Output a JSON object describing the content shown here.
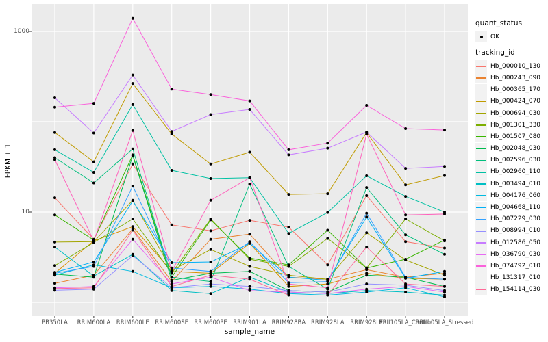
{
  "chart_data": {
    "type": "line",
    "title": "",
    "xlabel": "sample_name",
    "ylabel": "FPKM + 1",
    "y_scale": "log10",
    "ylim": [
      0.7,
      2000
    ],
    "y_ticks": [
      1000,
      10
    ],
    "y_tick_labels": [
      "1000",
      "10"
    ],
    "gridlines_y": [
      1,
      10,
      100,
      1000
    ],
    "grid": true,
    "legend_position": "right",
    "point_color": "#000000",
    "categories": [
      "PB350LA",
      "RRIM600LA",
      "RRIM600LE",
      "RRIM600SE",
      "RRIM600PE",
      "RRIM901LA",
      "RRIM928BA",
      "RRIM928LA",
      "RRIM928LE",
      "RRII105LA_Control",
      "RRII105LA_Stressed"
    ],
    "series": [
      {
        "name": "Hb_000010_130",
        "color": "#F8766D",
        "values": [
          14.4,
          5.0,
          34,
          7.2,
          6.2,
          8.1,
          6.8,
          2.6,
          15.2,
          4.7,
          4.0
        ]
      },
      {
        "name": "Hb_000243_090",
        "color": "#EA8331",
        "values": [
          1.62,
          2.0,
          6.5,
          1.7,
          5.0,
          5.7,
          1.9,
          1.8,
          2.3,
          1.9,
          2.1
        ]
      },
      {
        "name": "Hb_000365_170",
        "color": "#D89000",
        "values": [
          2.1,
          4.8,
          6.9,
          2.2,
          2.1,
          4.5,
          1.5,
          1.6,
          2.1,
          1.85,
          1.8
        ]
      },
      {
        "name": "Hb_000424_070",
        "color": "#C09B00",
        "values": [
          76,
          36,
          265,
          73,
          34,
          46,
          15.7,
          16,
          76,
          20,
          25.4
        ]
      },
      {
        "name": "Hb_000694_030",
        "color": "#A3A500",
        "values": [
          4.65,
          4.7,
          13.5,
          2.25,
          3.85,
          2.5,
          2.0,
          1.8,
          5.9,
          2.95,
          2.0
        ]
      },
      {
        "name": "Hb_001301_330",
        "color": "#7CAE00",
        "values": [
          2.55,
          4.6,
          8.4,
          2.1,
          8.4,
          3.0,
          2.5,
          5.1,
          2.4,
          8.4,
          4.8
        ]
      },
      {
        "name": "Hb_001507_080",
        "color": "#39B600",
        "values": [
          9.3,
          4.9,
          43,
          1.9,
          8.2,
          3.1,
          2.6,
          6.3,
          2.4,
          3.0,
          4.9
        ]
      },
      {
        "name": "Hb_002048_030",
        "color": "#00BB4E",
        "values": [
          2.05,
          1.9,
          42,
          1.75,
          2.1,
          2.2,
          1.35,
          1.3,
          2.0,
          1.9,
          1.5
        ]
      },
      {
        "name": "Hb_002596_030",
        "color": "#00BF7D",
        "values": [
          40,
          21,
          50,
          1.9,
          1.7,
          20.4,
          2.5,
          1.4,
          18.7,
          5.6,
          3.4
        ]
      },
      {
        "name": "Hb_002960_110",
        "color": "#00C1A3",
        "values": [
          49,
          27.5,
          155,
          29,
          23.5,
          24,
          5.8,
          9.9,
          25.2,
          14.9,
          10
        ]
      },
      {
        "name": "Hb_003494_010",
        "color": "#00BFC4",
        "values": [
          4.1,
          1.95,
          3.4,
          1.35,
          1.25,
          1.9,
          1.3,
          1.25,
          1.35,
          1.3,
          1.2
        ]
      },
      {
        "name": "Hb_004176_060",
        "color": "#00BAE0",
        "values": [
          2.0,
          2.6,
          2.2,
          1.45,
          1.5,
          1.4,
          1.25,
          1.2,
          1.3,
          1.45,
          1.15
        ]
      },
      {
        "name": "Hb_004668_110",
        "color": "#00B0F6",
        "values": [
          2.15,
          2.8,
          13.3,
          2.75,
          2.8,
          4.5,
          1.9,
          1.75,
          8.8,
          1.85,
          2.2
        ]
      },
      {
        "name": "Hb_007229_030",
        "color": "#35A2FF",
        "values": [
          2.1,
          2.5,
          19.4,
          2.4,
          2.2,
          4.7,
          1.65,
          1.7,
          9.7,
          1.9,
          1.8
        ]
      },
      {
        "name": "Hb_008994_010",
        "color": "#9590FF",
        "values": [
          1.36,
          1.4,
          3.3,
          1.45,
          1.6,
          1.5,
          1.35,
          1.3,
          1.6,
          1.55,
          1.35
        ]
      },
      {
        "name": "Hb_012586_050",
        "color": "#C77CFF",
        "values": [
          184,
          75,
          330,
          78,
          120,
          137,
          43,
          51,
          77,
          30.5,
          32
        ]
      },
      {
        "name": "Hb_036790_030",
        "color": "#E76BF3",
        "values": [
          1.45,
          1.5,
          5.0,
          1.6,
          1.9,
          1.35,
          1.3,
          1.25,
          1.4,
          1.5,
          1.3
        ]
      },
      {
        "name": "Hb_074792_010",
        "color": "#FA62DB",
        "values": [
          145,
          160,
          1400,
          230,
          200,
          170,
          49,
          58,
          152,
          84,
          81
        ]
      },
      {
        "name": "Hb_131317_010",
        "color": "#FF62BC",
        "values": [
          38,
          4.8,
          80,
          2.2,
          13.5,
          24,
          1.6,
          1.45,
          73,
          9.3,
          9.5
        ]
      },
      {
        "name": "Hb_154114_030",
        "color": "#FF6A98",
        "values": [
          1.42,
          1.45,
          6.3,
          1.5,
          2.0,
          1.8,
          1.2,
          1.2,
          4.1,
          1.6,
          1.5
        ]
      }
    ]
  },
  "legend": {
    "quant_status": {
      "title": "quant_status",
      "items": [
        {
          "label": "OK",
          "glyph": "point"
        }
      ]
    },
    "tracking": {
      "title": "tracking_id"
    }
  },
  "panel": {
    "background": "#EBEBEB",
    "gridline_color": "#FFFFFF",
    "tick_color": "#333333",
    "key_background": "#F2F2F2"
  }
}
